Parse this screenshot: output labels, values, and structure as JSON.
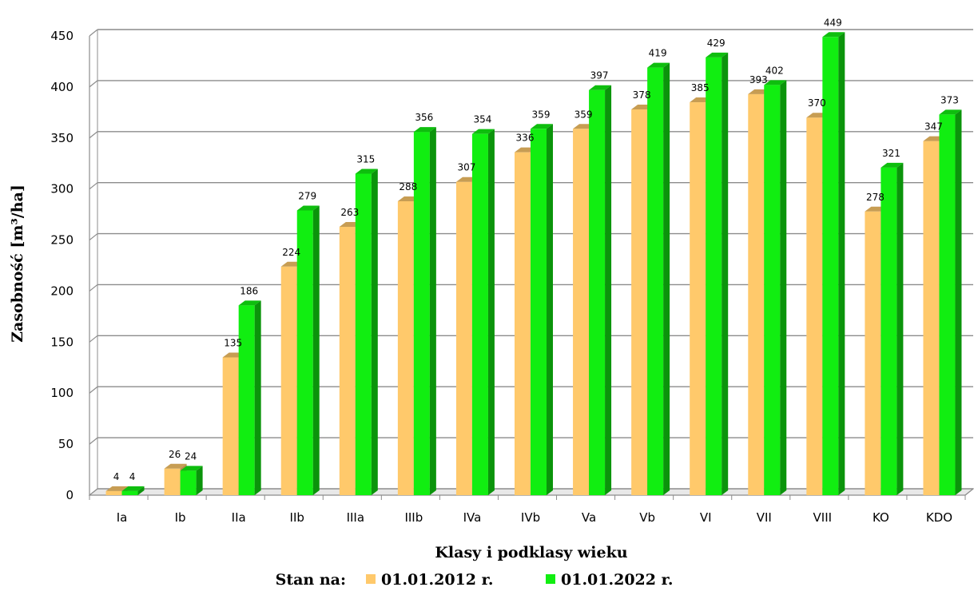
{
  "chart_data": {
    "type": "bar",
    "style": "3d-clustered-column",
    "categories": [
      "Ia",
      "Ib",
      "IIa",
      "IIb",
      "IIIa",
      "IIIb",
      "IVa",
      "IVb",
      "Va",
      "Vb",
      "VI",
      "VII",
      "VIII",
      "KO",
      "KDO"
    ],
    "series": [
      {
        "name": "01.01.2012 r.",
        "color": "#ffc96b",
        "values": [
          4,
          26,
          135,
          224,
          263,
          288,
          307,
          336,
          359,
          378,
          385,
          393,
          370,
          278,
          347
        ]
      },
      {
        "name": "01.01.2022 r.",
        "color": "#11ee11",
        "values": [
          4,
          24,
          186,
          279,
          315,
          356,
          354,
          359,
          397,
          419,
          429,
          402,
          449,
          321,
          373
        ]
      }
    ],
    "xlabel": "Klasy i podklasy wieku",
    "ylabel": "Zasobność [m³/ha]",
    "ylim": [
      0,
      450
    ],
    "yticks": [
      0,
      50,
      100,
      150,
      200,
      250,
      300,
      350,
      400,
      450
    ],
    "grid": true,
    "legend": {
      "title": "Stan na:",
      "position": "bottom"
    }
  }
}
